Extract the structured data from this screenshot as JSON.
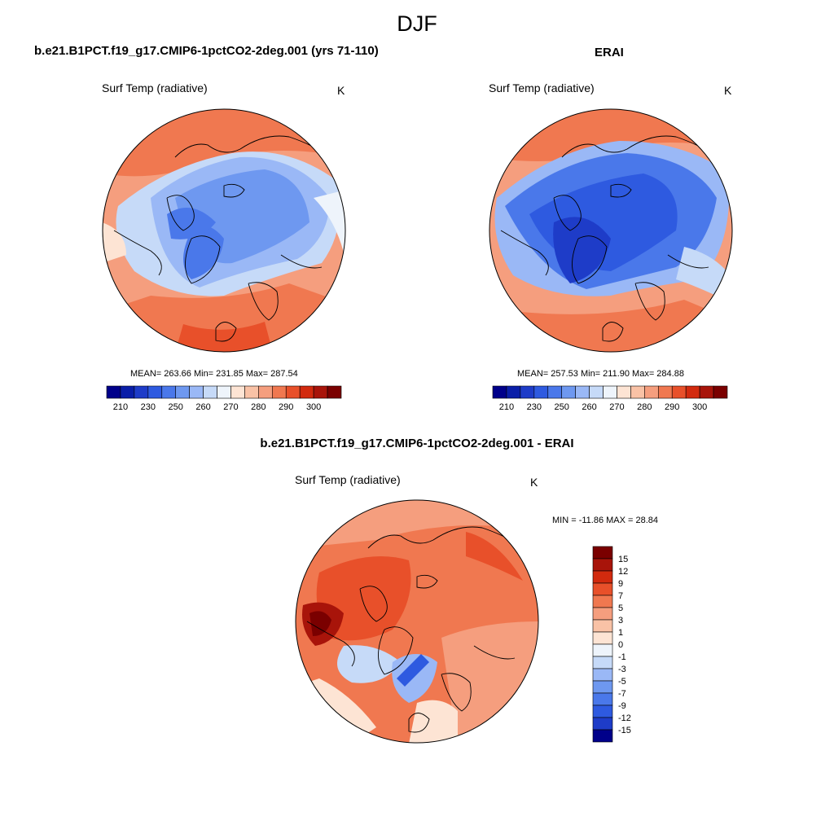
{
  "figure": {
    "title": "DJF"
  },
  "panels": [
    {
      "id": "model",
      "title": "b.e21.B1PCT.f19_g17.CMIP6-1pctCO2-2deg.001 (yrs 71-110)",
      "variable": "Surf Temp (radiative)",
      "units": "K",
      "stats": "MEAN= 263.66  Min= 231.85  Max= 287.54"
    },
    {
      "id": "obs",
      "title": "ERAI",
      "variable": "Surf Temp (radiative)",
      "units": "K",
      "stats": "MEAN= 257.53  Min= 211.90  Max= 284.88"
    },
    {
      "id": "diff",
      "title": "b.e21.B1PCT.f19_g17.CMIP6-1pctCO2-2deg.001 - ERAI",
      "variable": "Surf Temp (radiative)",
      "units": "K",
      "stats": "MIN = -11.86 MAX =  28.84"
    }
  ],
  "chart_data": [
    {
      "type": "heatmap",
      "projection": "north-polar-stereographic",
      "title": "b.e21.B1PCT.f19_g17.CMIP6-1pctCO2-2deg.001 (yrs 71-110)",
      "variable": "Surf Temp (radiative)",
      "units": "K",
      "mean": 263.66,
      "min": 231.85,
      "max": 287.54,
      "colorbar": {
        "orientation": "horizontal",
        "levels": [
          210,
          220,
          230,
          240,
          250,
          255,
          260,
          265,
          270,
          275,
          280,
          285,
          290,
          295,
          300
        ],
        "tick_labels": [
          "210",
          "230",
          "250",
          "260",
          "270",
          "280",
          "290",
          "300"
        ],
        "colors": [
          "#00008a",
          "#0a1ea8",
          "#1e3cc8",
          "#2e5ae0",
          "#4a78ea",
          "#6e98f0",
          "#9ab8f6",
          "#c6daf8",
          "#eef4fb",
          "#fde4d4",
          "#f9c2a6",
          "#f59e7e",
          "#f07850",
          "#e8502a",
          "#d22a0e",
          "#a8140a",
          "#7a0000"
        ]
      }
    },
    {
      "type": "heatmap",
      "projection": "north-polar-stereographic",
      "title": "ERAI",
      "variable": "Surf Temp (radiative)",
      "units": "K",
      "mean": 257.53,
      "min": 211.9,
      "max": 284.88,
      "colorbar": {
        "orientation": "horizontal",
        "levels": [
          210,
          220,
          230,
          240,
          250,
          255,
          260,
          265,
          270,
          275,
          280,
          285,
          290,
          295,
          300
        ],
        "tick_labels": [
          "210",
          "230",
          "250",
          "260",
          "270",
          "280",
          "290",
          "300"
        ],
        "colors": [
          "#00008a",
          "#0a1ea8",
          "#1e3cc8",
          "#2e5ae0",
          "#4a78ea",
          "#6e98f0",
          "#9ab8f6",
          "#c6daf8",
          "#eef4fb",
          "#fde4d4",
          "#f9c2a6",
          "#f59e7e",
          "#f07850",
          "#e8502a",
          "#d22a0e",
          "#a8140a",
          "#7a0000"
        ]
      }
    },
    {
      "type": "heatmap",
      "projection": "north-polar-stereographic",
      "title": "b.e21.B1PCT.f19_g17.CMIP6-1pctCO2-2deg.001 - ERAI",
      "variable": "Surf Temp (radiative)",
      "units": "K",
      "min": -11.86,
      "max": 28.84,
      "colorbar": {
        "orientation": "vertical",
        "tick_labels": [
          "15",
          "12",
          "9",
          "7",
          "5",
          "3",
          "1",
          "0",
          "-1",
          "-3",
          "-5",
          "-7",
          "-9",
          "-12",
          "-15"
        ],
        "colors": [
          "#7a0000",
          "#a8140a",
          "#d22a0e",
          "#e8502a",
          "#f07850",
          "#f59e7e",
          "#f9c2a6",
          "#fde4d4",
          "#eef4fb",
          "#c6daf8",
          "#9ab8f6",
          "#6e98f0",
          "#4a78ea",
          "#2e5ae0",
          "#1e3cc8",
          "#00008a"
        ]
      }
    }
  ]
}
